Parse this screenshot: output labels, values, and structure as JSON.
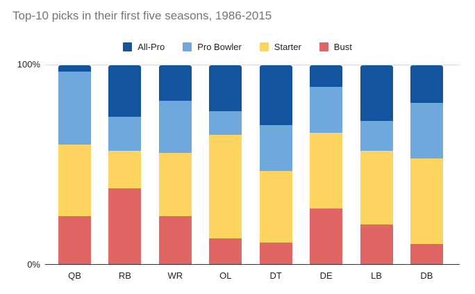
{
  "title": "Top-10 picks in their first five seasons, 1986-2015",
  "colors": {
    "all_pro": "#12549e",
    "pro_bowler": "#6fa8dc",
    "starter": "#fcd45f",
    "bust": "#e06666",
    "title_text": "#757575",
    "axis_text": "#222222",
    "gridline": "#d9d9d9",
    "baseline": "#333333",
    "background": "#ffffff"
  },
  "chart_data": {
    "type": "bar",
    "stacked": true,
    "units": "percent",
    "title": "Top-10 picks in their first five seasons, 1986-2015",
    "categories": [
      "QB",
      "RB",
      "WR",
      "OL",
      "DT",
      "DE",
      "LB",
      "DB"
    ],
    "series": [
      {
        "name": "All-Pro",
        "color": "#12549e",
        "values": [
          3,
          26,
          18,
          23,
          30,
          11,
          28,
          19
        ]
      },
      {
        "name": "Pro Bowler",
        "color": "#6fa8dc",
        "values": [
          37,
          17,
          26,
          12,
          23,
          23,
          15,
          28
        ]
      },
      {
        "name": "Starter",
        "color": "#fcd45f",
        "values": [
          36,
          19,
          32,
          52,
          36,
          38,
          37,
          43
        ]
      },
      {
        "name": "Bust",
        "color": "#e06666",
        "values": [
          24,
          38,
          24,
          13,
          11,
          28,
          20,
          10
        ]
      }
    ],
    "xlabel": "",
    "ylabel": "",
    "y_axis": {
      "min": 0,
      "max": 100,
      "ticks": [
        "100%",
        "0%"
      ]
    },
    "legend_position": "top",
    "grid": "100%-line-only"
  }
}
